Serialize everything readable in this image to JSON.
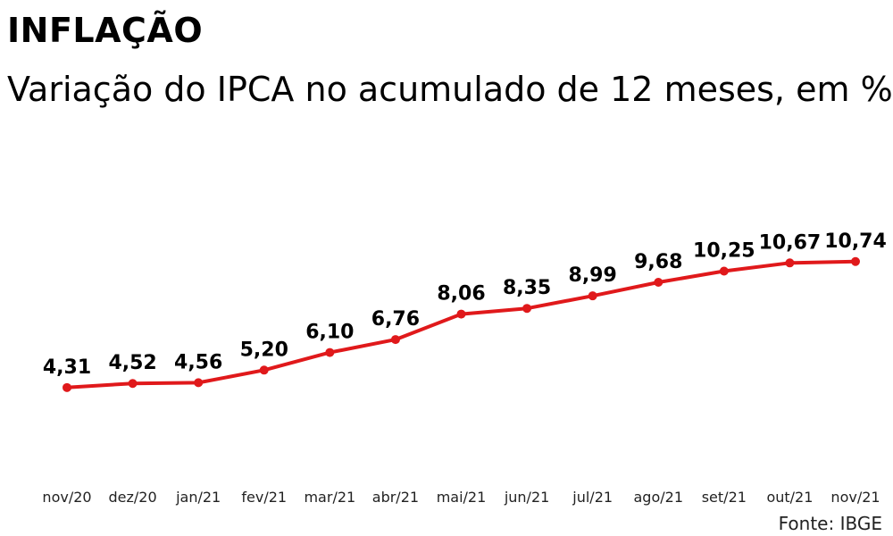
{
  "header": {
    "title": "INFLAÇÃO",
    "subtitle": "Variação do IPCA no acumulado de 12 meses, em %"
  },
  "source": "Fonte: IBGE",
  "colors": {
    "line": "#e0191b",
    "text": "#000000"
  },
  "chart_data": {
    "type": "line",
    "title": "INFLAÇÃO",
    "subtitle": "Variação do IPCA no acumulado de 12 meses, em %",
    "categories": [
      "nov/20",
      "dez/20",
      "jan/21",
      "fev/21",
      "mar/21",
      "abr/21",
      "mai/21",
      "jun/21",
      "jul/21",
      "ago/21",
      "set/21",
      "out/21",
      "nov/21"
    ],
    "values": [
      4.31,
      4.52,
      4.56,
      5.2,
      6.1,
      6.76,
      8.06,
      8.35,
      8.99,
      9.68,
      10.25,
      10.67,
      10.74
    ],
    "value_labels": [
      "4,31",
      "4,52",
      "4,56",
      "5,20",
      "6,10",
      "6,76",
      "8,06",
      "8,35",
      "8,99",
      "9,68",
      "10,25",
      "10,67",
      "10,74"
    ],
    "xlabel": "",
    "ylabel": "",
    "grid": false,
    "legend": "none"
  }
}
